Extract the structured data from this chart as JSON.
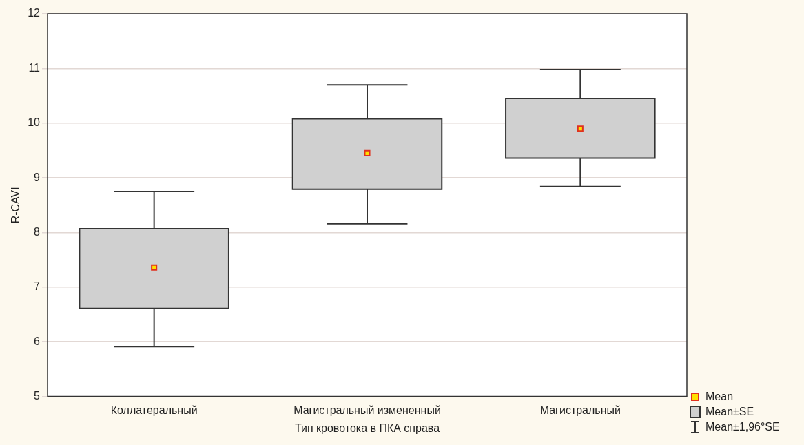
{
  "chart_data": {
    "type": "box",
    "xlabel": "Тип кровотока в ПКА справа",
    "ylabel": "R-CAVI",
    "categories": [
      "Коллатеральный",
      "Магистральный измененный",
      "Магистральный"
    ],
    "boxes": [
      {
        "low": 5.91,
        "q1": 6.61,
        "q3": 8.07,
        "high": 8.75,
        "mean": 7.36
      },
      {
        "low": 8.16,
        "q1": 8.79,
        "q3": 10.08,
        "high": 10.7,
        "mean": 9.45
      },
      {
        "low": 8.84,
        "q1": 9.36,
        "q3": 10.45,
        "high": 10.98,
        "mean": 9.9
      }
    ],
    "color": "#d0d0d0",
    "ylim": [
      5,
      12
    ],
    "yticks": [
      5,
      6,
      7,
      8,
      9,
      10,
      11,
      12
    ],
    "grid": "y",
    "annotations": [
      "Mean",
      "Mean±SE",
      "Mean±1,96°SE"
    ]
  }
}
